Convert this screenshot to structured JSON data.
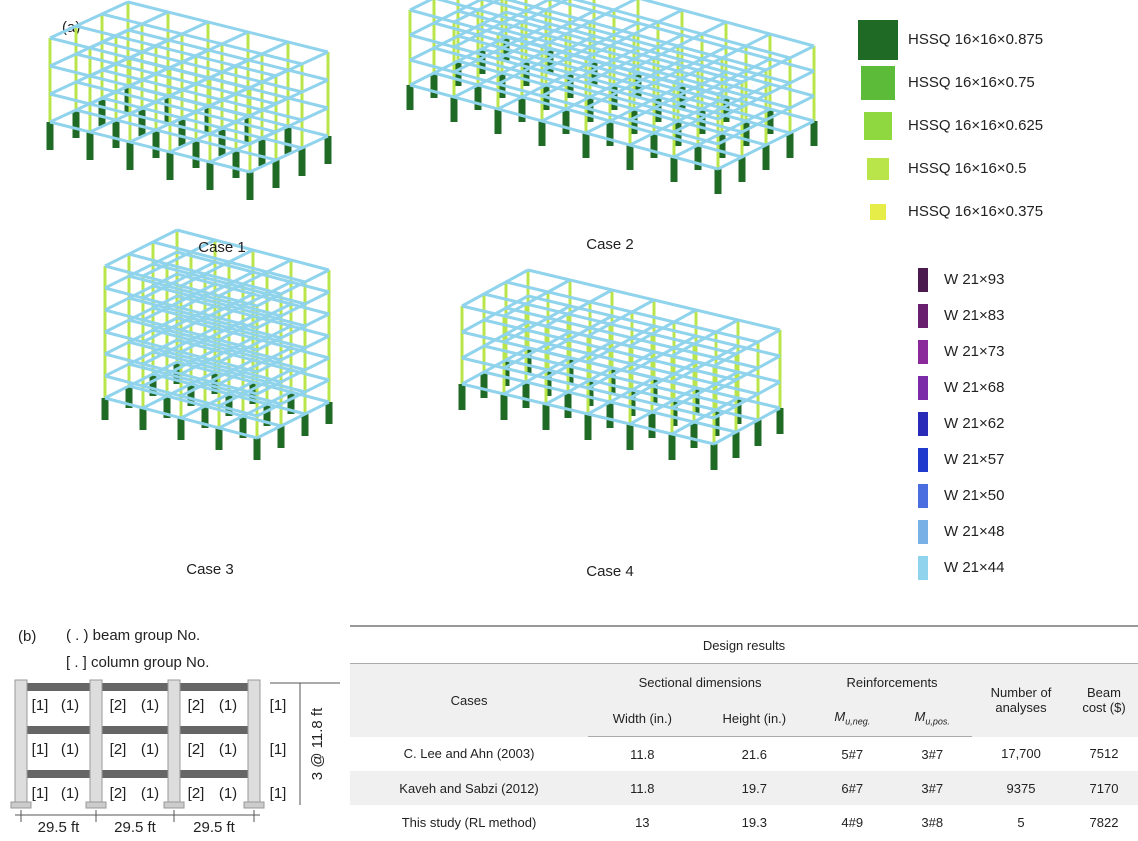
{
  "panel_a": {
    "label": "(a)",
    "cases": [
      "Case 1",
      "Case 2",
      "Case 3",
      "Case 4"
    ],
    "column_legend": [
      {
        "label": "HSSQ 16×16×0.875",
        "color": "#1f6b26"
      },
      {
        "label": "HSSQ 16×16×0.75",
        "color": "#5dbb3a"
      },
      {
        "label": "HSSQ 16×16×0.625",
        "color": "#8fd83f"
      },
      {
        "label": "HSSQ 16×16×0.5",
        "color": "#b9e44a"
      },
      {
        "label": "HSSQ 16×16×0.375",
        "color": "#e6ec48"
      }
    ],
    "beam_legend": [
      {
        "label": "W 21×93",
        "color": "#4b1a4e"
      },
      {
        "label": "W 21×83",
        "color": "#6a1f6e"
      },
      {
        "label": "W 21×73",
        "color": "#8b2a9a"
      },
      {
        "label": "W 21×68",
        "color": "#7b2aa8"
      },
      {
        "label": "W 21×62",
        "color": "#2a2ab8"
      },
      {
        "label": "W 21×57",
        "color": "#1f3acc"
      },
      {
        "label": "W 21×50",
        "color": "#4a6ee0"
      },
      {
        "label": "W 21×48",
        "color": "#79b0e6"
      },
      {
        "label": "W 21×44",
        "color": "#8fd3ec"
      }
    ]
  },
  "panel_b": {
    "label": "(b)",
    "notes": [
      "( . ) beam group No.",
      "[ . ] column group No."
    ],
    "frame": {
      "rows": [
        [
          "[1]",
          "(1)",
          "[2]",
          "(1)",
          "[2]",
          "(1)",
          "[1]"
        ],
        [
          "[1]",
          "(1)",
          "[2]",
          "(1)",
          "[2]",
          "(1)",
          "[1]"
        ],
        [
          "[1]",
          "(1)",
          "[2]",
          "(1)",
          "[2]",
          "(1)",
          "[1]"
        ]
      ],
      "height_label": "3 @ 11.8 ft",
      "span_labels": [
        "29.5 ft",
        "29.5 ft",
        "29.5 ft"
      ]
    },
    "table": {
      "title": "Design results",
      "header": {
        "cases": "Cases",
        "sectional": "Sectional dimensions",
        "width": "Width (in.)",
        "height": "Height (in.)",
        "reinforcements": "Reinforcements",
        "m_neg": {
          "symbol": "M",
          "subscript": "u,neg."
        },
        "m_pos": {
          "symbol": "M",
          "subscript": "u,pos."
        },
        "analyses": "Number of analyses",
        "cost": "Beam cost ($)"
      },
      "rows": [
        [
          "C. Lee and Ahn (2003)",
          "11.8",
          "21.6",
          "5#7",
          "3#7",
          "17,700",
          "7512"
        ],
        [
          "Kaveh and Sabzi (2012)",
          "11.8",
          "19.7",
          "6#7",
          "3#7",
          "9375",
          "7170"
        ],
        [
          "This study (RL method)",
          "13",
          "19.3",
          "4#9",
          "3#8",
          "5",
          "7822"
        ]
      ]
    }
  }
}
